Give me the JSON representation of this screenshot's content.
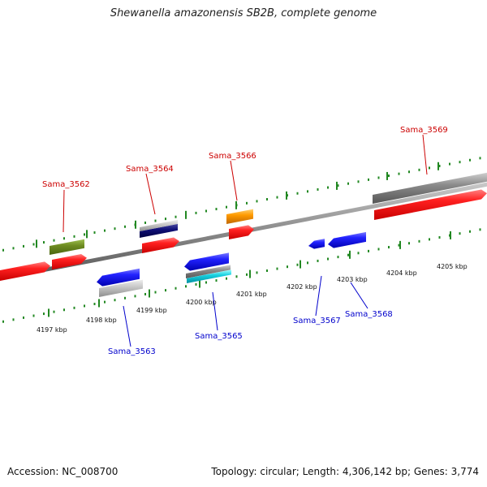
{
  "title": "Shewanella amazonensis SB2B, complete genome",
  "footer": {
    "accession": "Accession: NC_008700",
    "topology": "Topology: circular; Length: 4,306,142 bp; Genes: 3,774"
  },
  "colors": {
    "forward_gene": "#ee1111",
    "reverse_gene": "#1a1aee",
    "tick": "#228822",
    "backbone": "#888888",
    "label_forward": "#cc0000",
    "label_reverse": "#0000cc"
  },
  "ticks": [
    "4197 kbp",
    "4198 kbp",
    "4199 kbp",
    "4200 kbp",
    "4201 kbp",
    "4202 kbp",
    "4203 kbp",
    "4204 kbp",
    "4205 kbp"
  ],
  "genes": [
    {
      "id": "Sama_3562",
      "strand": "forward"
    },
    {
      "id": "Sama_3563",
      "strand": "reverse"
    },
    {
      "id": "Sama_3564",
      "strand": "forward"
    },
    {
      "id": "Sama_3565",
      "strand": "reverse"
    },
    {
      "id": "Sama_3566",
      "strand": "forward"
    },
    {
      "id": "Sama_3567",
      "strand": "reverse"
    },
    {
      "id": "Sama_3568",
      "strand": "reverse"
    },
    {
      "id": "Sama_3569",
      "strand": "forward"
    }
  ]
}
